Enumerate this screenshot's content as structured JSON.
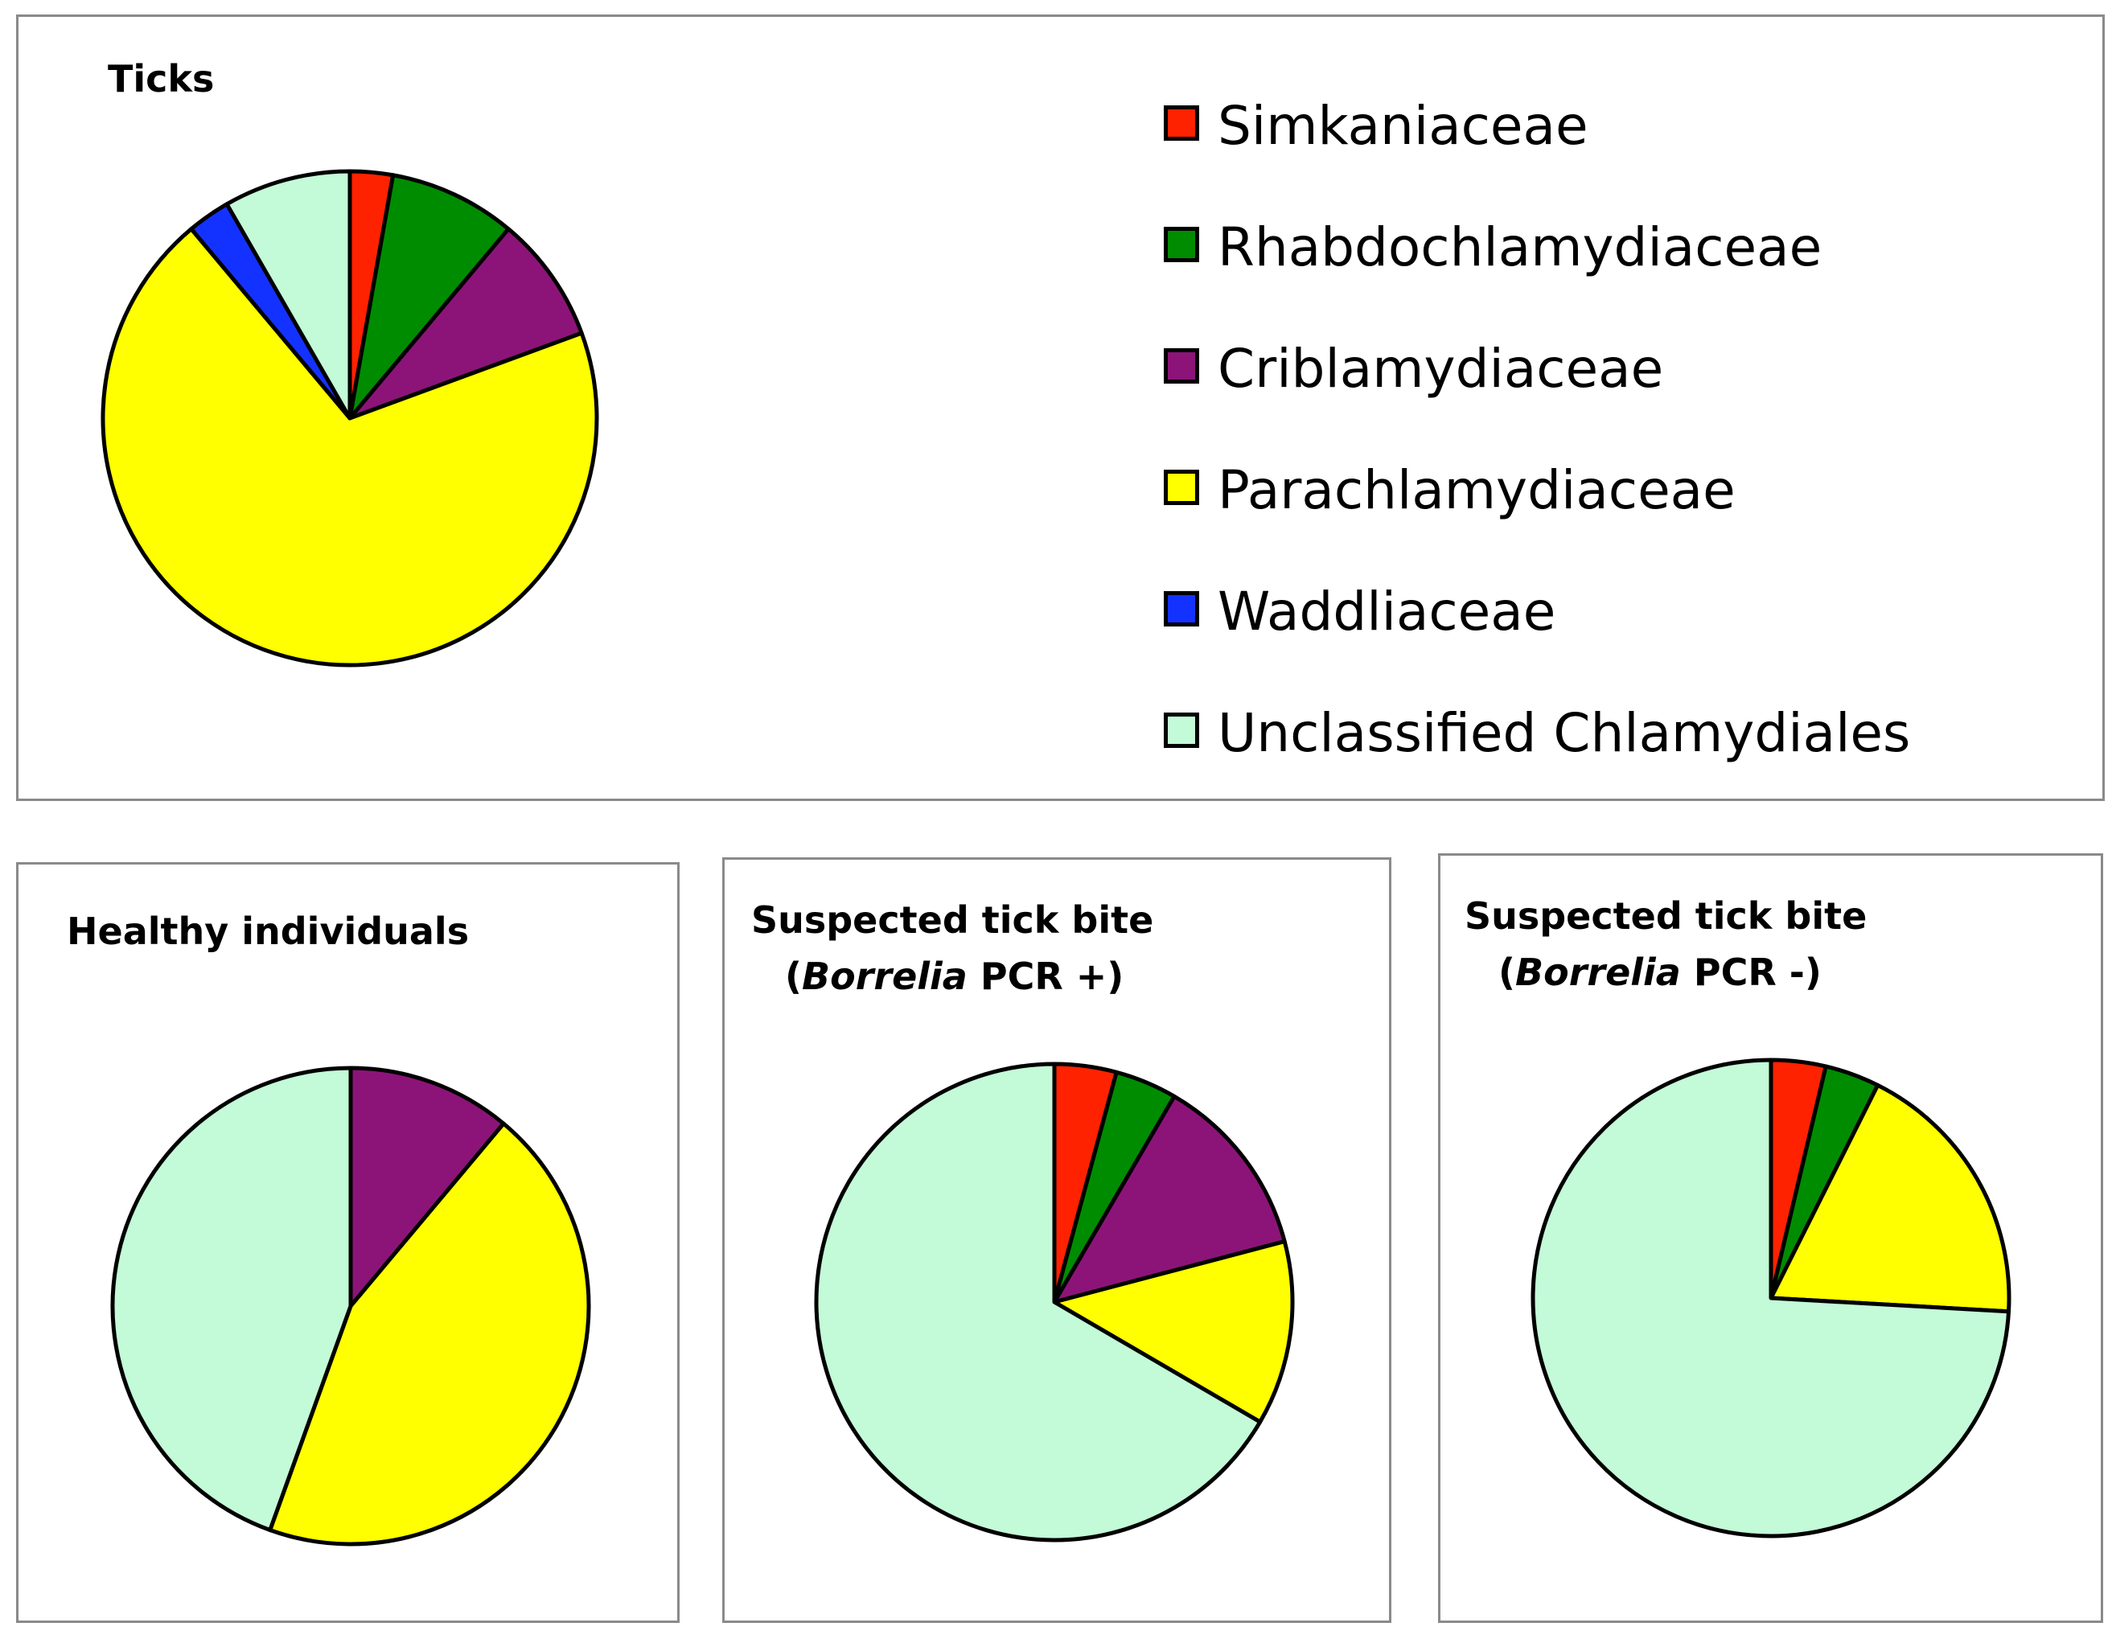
{
  "chart_data": {
    "type": "pie",
    "legend": {
      "position": "top-right",
      "entries": [
        {
          "name": "Simkaniaceae",
          "color": "#ff2200"
        },
        {
          "name": "Rhabdochlamydiaceae",
          "color": "#008c00"
        },
        {
          "name": "Criblamydiaceae",
          "color": "#8c1478"
        },
        {
          "name": "Parachlamydiaceae",
          "color": "#ffff00"
        },
        {
          "name": "Waddliaceae",
          "color": "#1432ff"
        },
        {
          "name": "Unclassified Chlamydiales",
          "color": "#c3fad7"
        }
      ]
    },
    "charts": [
      {
        "title": "Ticks",
        "slices": [
          {
            "label": "Simkaniaceae",
            "value": 2.8
          },
          {
            "label": "Rhabdochlamydiaceae",
            "value": 8.3
          },
          {
            "label": "Criblamydiaceae",
            "value": 8.3
          },
          {
            "label": "Parachlamydiaceae",
            "value": 69.5
          },
          {
            "label": "Waddliaceae",
            "value": 2.8
          },
          {
            "label": "Unclassified Chlamydiales",
            "value": 8.3
          }
        ]
      },
      {
        "title": "Healthy individuals",
        "slices": [
          {
            "label": "Criblamydiaceae",
            "value": 11.1
          },
          {
            "label": "Parachlamydiaceae",
            "value": 44.4
          },
          {
            "label": "Unclassified Chlamydiales",
            "value": 44.5
          }
        ]
      },
      {
        "title": "Suspected tick bite",
        "subtitle_prefix": "(",
        "subtitle_italic": "Borrelia",
        "subtitle_suffix": " PCR +)",
        "slices": [
          {
            "label": "Simkaniaceae",
            "value": 4.2
          },
          {
            "label": "Rhabdochlamydiaceae",
            "value": 4.2
          },
          {
            "label": "Criblamydiaceae",
            "value": 12.5
          },
          {
            "label": "Parachlamydiaceae",
            "value": 12.5
          },
          {
            "label": "Unclassified Chlamydiales",
            "value": 66.6
          }
        ]
      },
      {
        "title": "Suspected tick bite",
        "subtitle_prefix": "(",
        "subtitle_italic": "Borrelia",
        "subtitle_suffix": " PCR -)",
        "slices": [
          {
            "label": "Simkaniaceae",
            "value": 3.7
          },
          {
            "label": "Rhabdochlamydiaceae",
            "value": 3.7
          },
          {
            "label": "Parachlamydiaceae",
            "value": 18.5
          },
          {
            "label": "Unclassified Chlamydiales",
            "value": 74.1
          }
        ]
      }
    ]
  }
}
